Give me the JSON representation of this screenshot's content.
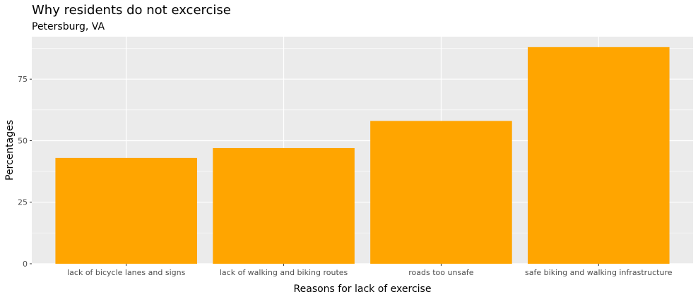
{
  "chart_data": {
    "type": "bar",
    "title": "Why residents do not excercise",
    "subtitle": "Petersburg, VA",
    "xlabel": "Reasons for lack of exercise",
    "ylabel": "Percentages",
    "categories": [
      "lack of bicycle lanes and signs",
      "lack of walking and biking routes",
      "roads too unsafe",
      "safe biking and walking infrastructure"
    ],
    "values": [
      43,
      47,
      58,
      88
    ],
    "ylim": [
      0,
      92.25
    ],
    "yticks": [
      0,
      25,
      50,
      75
    ],
    "ytick_labels": [
      "0",
      "25",
      "50",
      "75"
    ],
    "grid": true,
    "legend": "none",
    "colors": {
      "bar": "#FFA500",
      "panel_background": "#EBEBEB",
      "grid": "#FFFFFF",
      "tick_label": "#4D4D4D",
      "tick_mark": "#333333"
    }
  }
}
